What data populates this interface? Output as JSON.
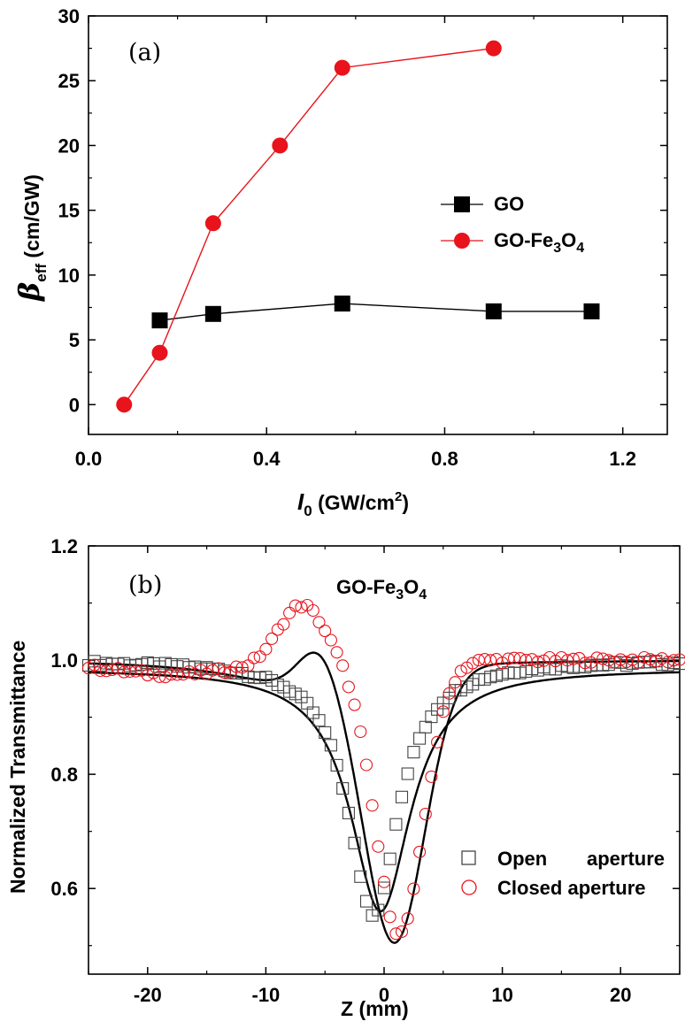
{
  "chart_data": [
    {
      "type": "line",
      "panel_label": "(a)",
      "xlabel_symbol": "I",
      "xlabel_sub": "0",
      "xlabel_pre": " (GW/cm",
      "xlabel_sup": "2",
      "xlabel_post": ")",
      "ylabel_symbol": "β",
      "ylabel_sub": "eff",
      "ylabel_unit": " (cm/GW)",
      "xlim": [
        0.0,
        1.3
      ],
      "ylim": [
        -2.3,
        30
      ],
      "xticks": [
        0.0,
        0.4,
        0.8,
        1.2
      ],
      "xtick_labels": [
        "0.0",
        "0.4",
        "0.8",
        "1.2"
      ],
      "yticks": [
        0,
        5,
        10,
        15,
        20,
        25,
        30
      ],
      "ytick_labels": [
        "0",
        "5",
        "10",
        "15",
        "20",
        "25",
        "30"
      ],
      "legend_placement": "center-right",
      "series": [
        {
          "name": "GO",
          "legend_main": "GO",
          "color": "#000000",
          "marker": "square",
          "x": [
            0.16,
            0.28,
            0.57,
            0.91,
            1.13
          ],
          "y": [
            6.5,
            7.0,
            7.8,
            7.2,
            7.2
          ]
        },
        {
          "name": "GO-Fe3O4",
          "legend_parts": [
            "GO-Fe",
            "3",
            "O",
            "4"
          ],
          "color": "#e8131b",
          "marker": "circle",
          "x": [
            0.08,
            0.16,
            0.28,
            0.43,
            0.57,
            0.91
          ],
          "y": [
            0.0,
            4.0,
            14.0,
            20.0,
            26.0,
            27.5
          ]
        }
      ]
    },
    {
      "type": "scatter",
      "panel_label": "(b)",
      "title_parts": [
        "GO-Fe",
        "3",
        "O",
        "4"
      ],
      "xlabel": "Z (mm)",
      "ylabel": "Normalized Transmittance",
      "xlim": [
        -25,
        25
      ],
      "ylim": [
        0.45,
        1.2
      ],
      "xticks": [
        -20,
        -10,
        0,
        10,
        20
      ],
      "xtick_labels": [
        "-20",
        "-10",
        "0",
        "10",
        "20"
      ],
      "yticks": [
        0.6,
        0.8,
        1.0,
        1.2
      ],
      "ytick_labels": [
        "0.6",
        "0.8",
        "1.0",
        "1.2"
      ],
      "legend_placement": "bottom-right",
      "series": [
        {
          "name": "Open aperture",
          "legend_word1": "Open",
          "legend_word2": "aperture",
          "color": "#444444",
          "marker": "open-square",
          "model": "1 - 0.445/(1+(z+0.9)^2/2.6^2), with small noise, z from -25 to 25 step 0.5"
        },
        {
          "name": "Closed aperture",
          "color": "#e8131b",
          "marker": "open-circle",
          "model": "z-scan closed aperture with valley near z=1.4 (~0.50) and peak near z=-7 (~1.07)"
        },
        {
          "name": "Fit open",
          "color": "#000000",
          "style": "line"
        },
        {
          "name": "Fit closed",
          "color": "#000000",
          "style": "line"
        }
      ]
    }
  ]
}
